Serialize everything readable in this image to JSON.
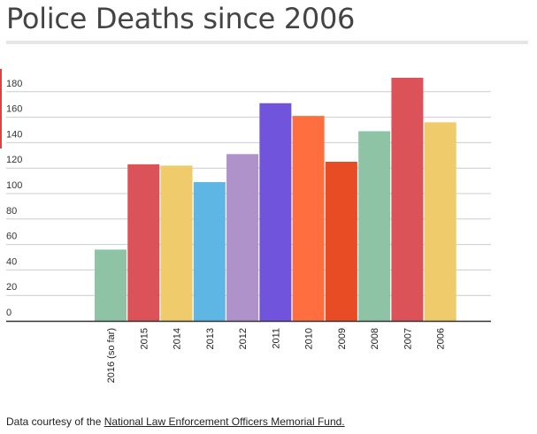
{
  "title": "Police Deaths since 2006",
  "footer": {
    "prefix": "Data courtesy of the ",
    "link_text": "National Law Enforcement Officers Memorial Fund.",
    "suffix": ""
  },
  "chart_data": {
    "type": "bar",
    "title": "Police Deaths since 2006",
    "xlabel": "",
    "ylabel": "",
    "ylim": [
      0,
      190
    ],
    "yticks": [
      0,
      20,
      40,
      60,
      80,
      100,
      120,
      140,
      160,
      180
    ],
    "grid": true,
    "legend": "none",
    "categories": [
      "2016 (so far)",
      "2015",
      "2014",
      "2013",
      "2012",
      "2011",
      "2010",
      "2009",
      "2008",
      "2007",
      "2006"
    ],
    "values": [
      56,
      123,
      122,
      109,
      131,
      171,
      161,
      125,
      149,
      191,
      156
    ],
    "colors": [
      "#8ec3a6",
      "#db5358",
      "#efcb6b",
      "#5db6e4",
      "#ae92c9",
      "#7054dc",
      "#ff6e3e",
      "#e74c25",
      "#8ec3a6",
      "#db5358",
      "#efcb6b"
    ]
  }
}
